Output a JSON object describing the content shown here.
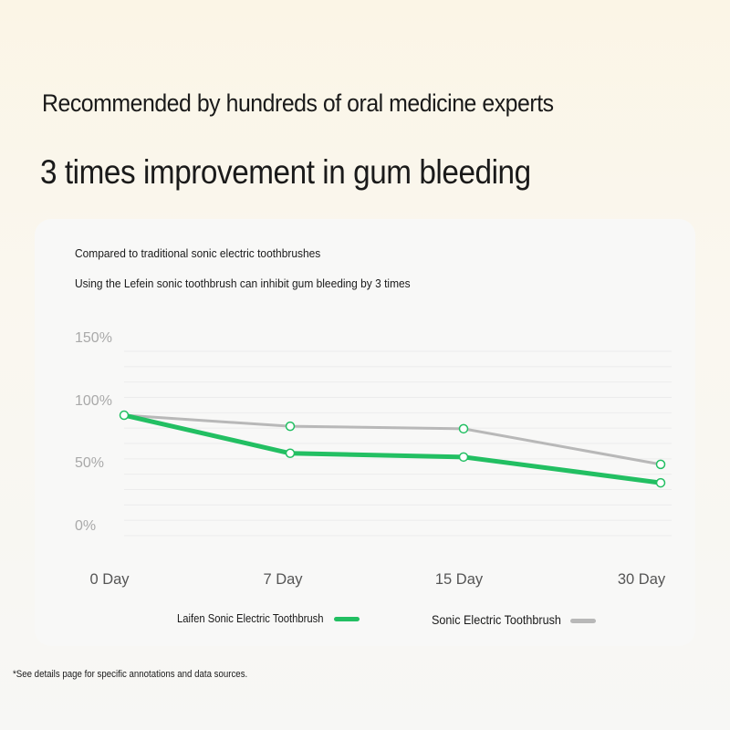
{
  "header": {
    "headline": "Recommended by hundreds of oral medicine experts",
    "subheadline": "3 times improvement in gum bleeding"
  },
  "card": {
    "note_line1": "Compared to traditional sonic electric toothbrushes",
    "note_line2": "Using the Lefein sonic toothbrush can inhibit gum bleeding by 3 times"
  },
  "footnote": "*See details page for specific annotations and data sources.",
  "colors": {
    "green": "#22bf62",
    "gray": "#b8b8b8"
  },
  "chart_data": {
    "type": "line",
    "x": [
      "0 Day",
      "7 Day",
      "15 Day",
      "30 Day"
    ],
    "y_ticks": [
      "150%",
      "100%",
      "50%",
      "0%"
    ],
    "ylim": [
      0,
      150
    ],
    "grid": true,
    "legend_position": "bottom",
    "series": [
      {
        "name": "Laifen Sonic Electric Toothbrush",
        "color": "#22bf62",
        "values": [
          98,
          67,
          64,
          43
        ]
      },
      {
        "name": "Sonic Electric Toothbrush",
        "color": "#b8b8b8",
        "values": [
          98,
          89,
          87,
          58
        ]
      }
    ]
  }
}
